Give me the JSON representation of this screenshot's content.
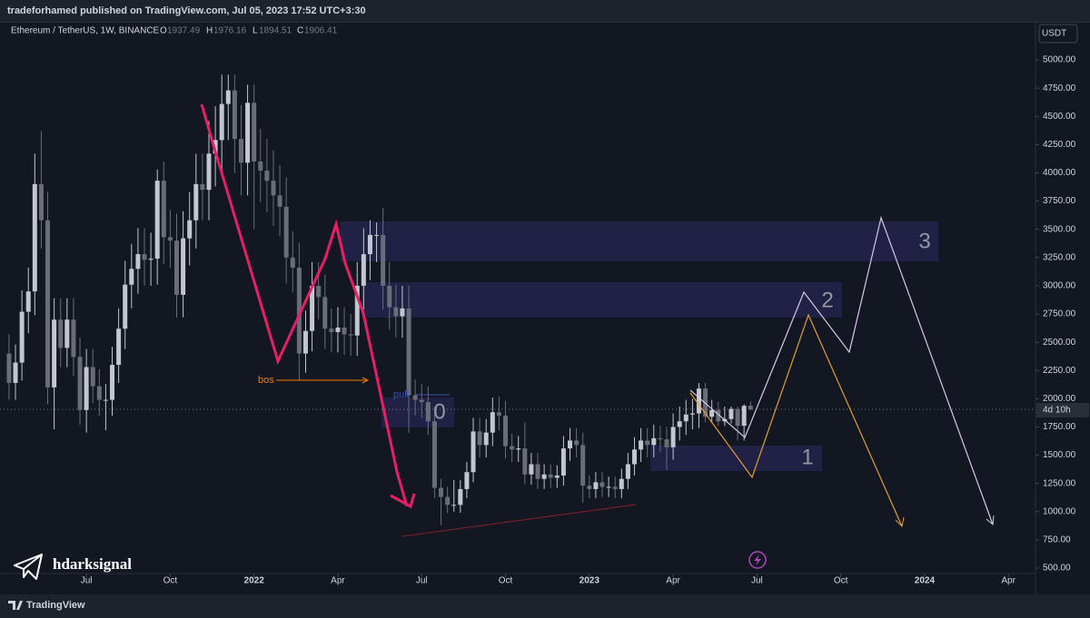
{
  "header": {
    "publisher": "tradeforhamed published on TradingView.com, Jul 05, 2023 17:52 UTC+3:30",
    "symbol": "Ethereum / TetherUS, 1W, BINANCE",
    "ohlc_labels": [
      "O",
      "H",
      "L",
      "C"
    ]
  },
  "currency": "USDT",
  "countdown": "4d 10h",
  "watermark": "hdarksignal",
  "footer": "TradingView",
  "annotations": [
    "bos",
    "pull",
    "0",
    "1",
    "2",
    "3"
  ],
  "chart_data": {
    "type": "candlestick",
    "up_color": "#c3c6ce",
    "down_color": "#6a6d78",
    "open": [
      2400,
      2140,
      2320,
      2770,
      2950,
      3900,
      3580,
      2100,
      2700,
      2450,
      2700,
      2370,
      1900,
      2280,
      2110,
      1990,
      1990,
      2300,
      2620,
      3010,
      3150,
      3280,
      3230,
      3240,
      3930,
      3430,
      3400,
      2920,
      3420,
      3580,
      3900,
      3850,
      4170,
      4290,
      4610,
      4730,
      4300,
      4090,
      4620,
      4100,
      4020,
      3930,
      3800,
      3700,
      3250,
      3160,
      2400,
      2600,
      3000,
      2900,
      2620,
      2590,
      2630,
      2570,
      2560,
      3000,
      3280,
      3450,
      3450,
      3000,
      2810,
      2730,
      2800,
      2030,
      1990,
      1970,
      1800,
      1210,
      1130,
      1060,
      1060,
      1200,
      1350,
      1710,
      1590,
      1700,
      1880,
      1850,
      1580,
      1550,
      1560,
      1330,
      1420,
      1290,
      1330,
      1300,
      1320,
      1560,
      1630,
      1590,
      1230,
      1200,
      1260,
      1220,
      1220,
      1200,
      1290,
      1420,
      1550,
      1630,
      1590,
      1650,
      1640,
      1570,
      1750,
      1800,
      1860,
      1870,
      2090,
      1840,
      1900,
      1800,
      1820,
      1910,
      1760,
      1937.49
    ],
    "high": [
      2570,
      2480,
      2960,
      3160,
      4170,
      4370,
      3830,
      2890,
      2890,
      2890,
      2890,
      2540,
      2440,
      2440,
      2260,
      2130,
      2460,
      2800,
      3220,
      3370,
      3510,
      3510,
      3470,
      4030,
      4100,
      3670,
      3640,
      3660,
      3830,
      4170,
      4170,
      4460,
      4590,
      4870,
      4870,
      4870,
      4600,
      4780,
      4780,
      4390,
      4300,
      4200,
      4070,
      3960,
      3480,
      3380,
      2780,
      3210,
      3210,
      3100,
      2800,
      2810,
      2810,
      2750,
      3210,
      3510,
      3580,
      3560,
      3690,
      3210,
      3010,
      3000,
      3000,
      2170,
      2130,
      2110,
      1930,
      1290,
      1220,
      1280,
      1280,
      1440,
      1830,
      1830,
      1820,
      2010,
      2020,
      1980,
      1690,
      1670,
      1790,
      1520,
      1520,
      1420,
      1420,
      1410,
      1670,
      1740,
      1740,
      1700,
      1320,
      1350,
      1350,
      1310,
      1310,
      1380,
      1520,
      1660,
      1740,
      1740,
      1770,
      1760,
      1750,
      1870,
      1930,
      1990,
      2000,
      2140,
      2140,
      1990,
      1970,
      1930,
      1930,
      1930,
      1950,
      1976.16
    ],
    "low": [
      1990,
      1990,
      2160,
      2580,
      2740,
      3330,
      1950,
      1730,
      2280,
      2280,
      2200,
      1770,
      1700,
      1960,
      1850,
      1720,
      1850,
      2140,
      2440,
      2800,
      2930,
      3000,
      3000,
      3010,
      3190,
      3160,
      2720,
      2720,
      3180,
      3330,
      3580,
      3580,
      3880,
      3990,
      4290,
      4000,
      3800,
      3800,
      3500,
      3740,
      3650,
      3530,
      3440,
      3020,
      2940,
      2160,
      2230,
      2420,
      2700,
      2440,
      2410,
      2410,
      2390,
      2380,
      2380,
      2790,
      3050,
      3210,
      2790,
      2610,
      2540,
      2540,
      1700,
      1850,
      1830,
      1680,
      1120,
      880,
      990,
      1000,
      990,
      1120,
      1260,
      1480,
      1480,
      1580,
      1720,
      1470,
      1440,
      1440,
      1240,
      1240,
      1200,
      1200,
      1210,
      1210,
      1230,
      1450,
      1480,
      1080,
      1120,
      1120,
      1130,
      1130,
      1120,
      1120,
      1200,
      1320,
      1440,
      1480,
      1480,
      1530,
      1370,
      1460,
      1630,
      1680,
      1730,
      1740,
      1790,
      1790,
      1760,
      1760,
      1780,
      1630,
      1630,
      1894.51
    ],
    "close": [
      2140,
      2320,
      2770,
      2950,
      3900,
      3580,
      2100,
      2700,
      2450,
      2700,
      2370,
      1900,
      2280,
      2110,
      1990,
      1990,
      2300,
      2620,
      3010,
      3150,
      3280,
      3230,
      3240,
      3930,
      3430,
      3400,
      2920,
      3420,
      3580,
      3900,
      3850,
      4170,
      4290,
      4610,
      4730,
      4300,
      4090,
      4620,
      4100,
      4020,
      3930,
      3800,
      3700,
      3250,
      3160,
      2400,
      2600,
      3000,
      2900,
      2620,
      2590,
      2630,
      2570,
      2560,
      3000,
      3280,
      3450,
      3450,
      3000,
      2810,
      2730,
      2800,
      2030,
      1990,
      1970,
      1800,
      1210,
      1130,
      1060,
      1060,
      1200,
      1350,
      1710,
      1590,
      1700,
      1880,
      1850,
      1580,
      1550,
      1560,
      1330,
      1420,
      1290,
      1330,
      1300,
      1320,
      1560,
      1630,
      1590,
      1230,
      1200,
      1260,
      1220,
      1220,
      1200,
      1290,
      1420,
      1550,
      1630,
      1590,
      1650,
      1640,
      1570,
      1750,
      1800,
      1860,
      1870,
      2090,
      1840,
      1900,
      1800,
      1820,
      1910,
      1760,
      1937,
      1906.41
    ],
    "xlim": [
      -1.4,
      159.2
    ],
    "xticks": [
      {
        "value": 12,
        "label": "Jul"
      },
      {
        "value": 25,
        "label": "Oct"
      },
      {
        "value": 38,
        "label": "2022"
      },
      {
        "value": 51,
        "label": "Apr"
      },
      {
        "value": 64,
        "label": "Jul"
      },
      {
        "value": 77,
        "label": "Oct"
      },
      {
        "value": 90,
        "label": "2023"
      },
      {
        "value": 103,
        "label": "Apr"
      },
      {
        "value": 116,
        "label": "Jul"
      },
      {
        "value": 129,
        "label": "Oct"
      },
      {
        "value": 142,
        "label": "2024"
      },
      {
        "value": 155,
        "label": "Apr"
      }
    ],
    "ylim": [
      452,
      5209
    ],
    "yticks": [
      {
        "value": 500,
        "label": "500.00"
      },
      {
        "value": 750,
        "label": "750.00"
      },
      {
        "value": 1000,
        "label": "1000.00"
      },
      {
        "value": 1250,
        "label": "1250.00"
      },
      {
        "value": 1500,
        "label": "1500.00"
      },
      {
        "value": 1750,
        "label": "1750.00"
      },
      {
        "value": 2000,
        "label": "2000.00"
      },
      {
        "value": 2250,
        "label": "2250.00"
      },
      {
        "value": 2500,
        "label": "2500.00"
      },
      {
        "value": 2750,
        "label": "2750.00"
      },
      {
        "value": 3000,
        "label": "3000.00"
      },
      {
        "value": 3250,
        "label": "3250.00"
      },
      {
        "value": 3500,
        "label": "3500.00"
      },
      {
        "value": 3750,
        "label": "3750.00"
      },
      {
        "value": 4000,
        "label": "4000.00"
      },
      {
        "value": 4250,
        "label": "4250.00"
      },
      {
        "value": 4500,
        "label": "4500.00"
      },
      {
        "value": 4750,
        "label": "4750.00"
      },
      {
        "value": 5000,
        "label": "5000.00"
      }
    ]
  }
}
